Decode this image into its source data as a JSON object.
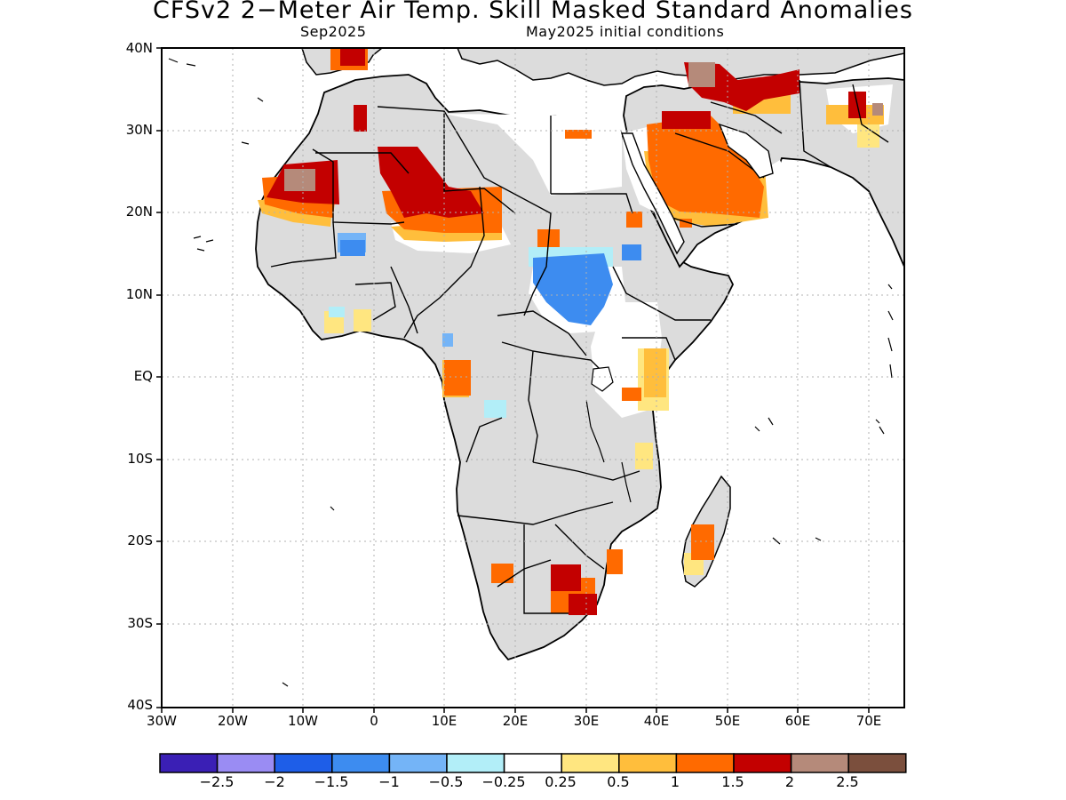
{
  "title": "CFSv2 2−Meter Air Temp. Skill Masked Standard Anomalies",
  "subtitle_left": "Sep2025",
  "subtitle_right": "May2025 initial conditions",
  "map": {
    "lon_range": [
      -30,
      75
    ],
    "lat_range": [
      -40,
      40
    ],
    "y_ticks": [
      "40N",
      "30N",
      "20N",
      "10N",
      "EQ",
      "10S",
      "20S",
      "30S",
      "40S"
    ],
    "x_ticks": [
      "30W",
      "20W",
      "10W",
      "0",
      "10E",
      "20E",
      "30E",
      "40E",
      "50E",
      "60E",
      "70E"
    ],
    "grid": "dotted",
    "colors": {
      "land_masked": "#dcdcdc",
      "ocean": "#ffffff",
      "outline": "#000000"
    }
  },
  "legend": {
    "colors": [
      "#3a1fb5",
      "#9a8cf3",
      "#1e5ee8",
      "#3d8cf0",
      "#74b4f7",
      "#b2eef8",
      "#ffffff",
      "#ffe680",
      "#ffbe3c",
      "#ff6a00",
      "#c30000",
      "#b58a7a",
      "#7b4f3d"
    ],
    "labels": [
      "−2.5",
      "−2",
      "−1.5",
      "−1",
      "−0.5",
      "−0.25",
      "0.25",
      "0.5",
      "1",
      "1.5",
      "2",
      "2.5"
    ]
  }
}
